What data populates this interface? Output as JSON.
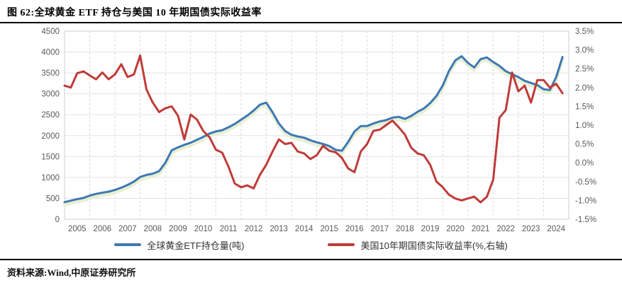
{
  "figure": {
    "title": "图 62:全球黄金 ETF 持仓与美国 10 年期国债实际收益率",
    "source": "资料来源:Wind,中原证券研究所"
  },
  "chart_data": {
    "type": "line",
    "title": "全球黄金ETF持仓与美国10年期国债实际收益率",
    "grid": {
      "horizontal": "solid",
      "vertical": "dashed"
    },
    "legend_position": "bottom",
    "left_axis": {
      "min": 0,
      "max": 4500,
      "step": 500,
      "labels": [
        "4500",
        "4000",
        "3500",
        "3000",
        "2500",
        "2000",
        "1500",
        "1000",
        "500",
        "0"
      ]
    },
    "right_axis": {
      "min": -1.5,
      "max": 3.5,
      "step": 0.5,
      "labels": [
        "3.5%",
        "3.0%",
        "2.5%",
        "2.0%",
        "1.5%",
        "1.0%",
        "0.5%",
        "0.0%",
        "-0.5%",
        "-1.0%",
        "-1.5%"
      ]
    },
    "x_ticks": [
      "2005",
      "2006",
      "2007",
      "2008",
      "2009",
      "2010",
      "2011",
      "2012",
      "2013",
      "2014",
      "2015",
      "2016",
      "2017",
      "2018",
      "2019",
      "2020",
      "2021",
      "2022",
      "2023",
      "2024"
    ],
    "x": [
      2005.0,
      2005.25,
      2005.5,
      2005.75,
      2006.0,
      2006.25,
      2006.5,
      2006.75,
      2007.0,
      2007.25,
      2007.5,
      2007.75,
      2008.0,
      2008.25,
      2008.5,
      2008.75,
      2009.0,
      2009.25,
      2009.5,
      2009.75,
      2010.0,
      2010.25,
      2010.5,
      2010.75,
      2011.0,
      2011.25,
      2011.5,
      2011.75,
      2012.0,
      2012.25,
      2012.5,
      2012.75,
      2013.0,
      2013.25,
      2013.5,
      2013.75,
      2014.0,
      2014.25,
      2014.5,
      2014.75,
      2015.0,
      2015.25,
      2015.5,
      2015.75,
      2016.0,
      2016.25,
      2016.5,
      2016.75,
      2017.0,
      2017.25,
      2017.5,
      2017.75,
      2018.0,
      2018.25,
      2018.5,
      2018.75,
      2019.0,
      2019.25,
      2019.5,
      2019.75,
      2020.0,
      2020.25,
      2020.5,
      2020.75,
      2021.0,
      2021.25,
      2021.5,
      2021.75,
      2022.0,
      2022.25,
      2022.5,
      2022.75,
      2023.0,
      2023.25,
      2023.5,
      2023.75,
      2024.0,
      2024.25,
      2024.5,
      2024.75
    ],
    "series": [
      {
        "name": "全球黄金ETF持仓量(吨)",
        "axis": "left",
        "color": "#3e78b5",
        "values": [
          410,
          445,
          480,
          510,
          565,
          605,
          635,
          660,
          700,
          755,
          820,
          900,
          1010,
          1060,
          1090,
          1150,
          1350,
          1650,
          1720,
          1780,
          1830,
          1900,
          1970,
          2050,
          2100,
          2130,
          2200,
          2280,
          2380,
          2480,
          2600,
          2740,
          2790,
          2560,
          2290,
          2110,
          2020,
          1980,
          1950,
          1890,
          1840,
          1800,
          1750,
          1660,
          1640,
          1850,
          2100,
          2230,
          2230,
          2290,
          2340,
          2370,
          2430,
          2450,
          2400,
          2470,
          2570,
          2650,
          2780,
          2950,
          3200,
          3550,
          3800,
          3900,
          3740,
          3630,
          3830,
          3870,
          3760,
          3670,
          3540,
          3470,
          3400,
          3310,
          3260,
          3210,
          3110,
          3090,
          3400,
          3880
        ]
      },
      {
        "name": "美国10年期国债实际收益率(%,右轴)",
        "axis": "right",
        "color": "#bf3b38",
        "values": [
          2.05,
          2.0,
          2.38,
          2.43,
          2.32,
          2.22,
          2.4,
          2.22,
          2.35,
          2.62,
          2.28,
          2.35,
          2.85,
          1.95,
          1.6,
          1.35,
          1.45,
          1.5,
          1.25,
          0.62,
          1.28,
          1.15,
          0.85,
          0.68,
          0.35,
          0.27,
          -0.1,
          -0.55,
          -0.65,
          -0.6,
          -0.68,
          -0.32,
          -0.05,
          0.3,
          0.62,
          0.5,
          0.53,
          0.3,
          0.25,
          0.1,
          0.2,
          0.45,
          0.32,
          0.28,
          0.13,
          -0.15,
          -0.25,
          0.3,
          0.5,
          0.85,
          0.88,
          1.0,
          1.12,
          0.95,
          0.75,
          0.4,
          0.25,
          0.2,
          -0.05,
          -0.5,
          -0.65,
          -0.85,
          -0.95,
          -1.0,
          -0.95,
          -0.9,
          -1.05,
          -0.9,
          -0.45,
          1.2,
          1.4,
          2.4,
          1.9,
          2.05,
          1.6,
          2.2,
          2.2,
          2.0,
          2.1,
          1.85
        ]
      }
    ]
  }
}
